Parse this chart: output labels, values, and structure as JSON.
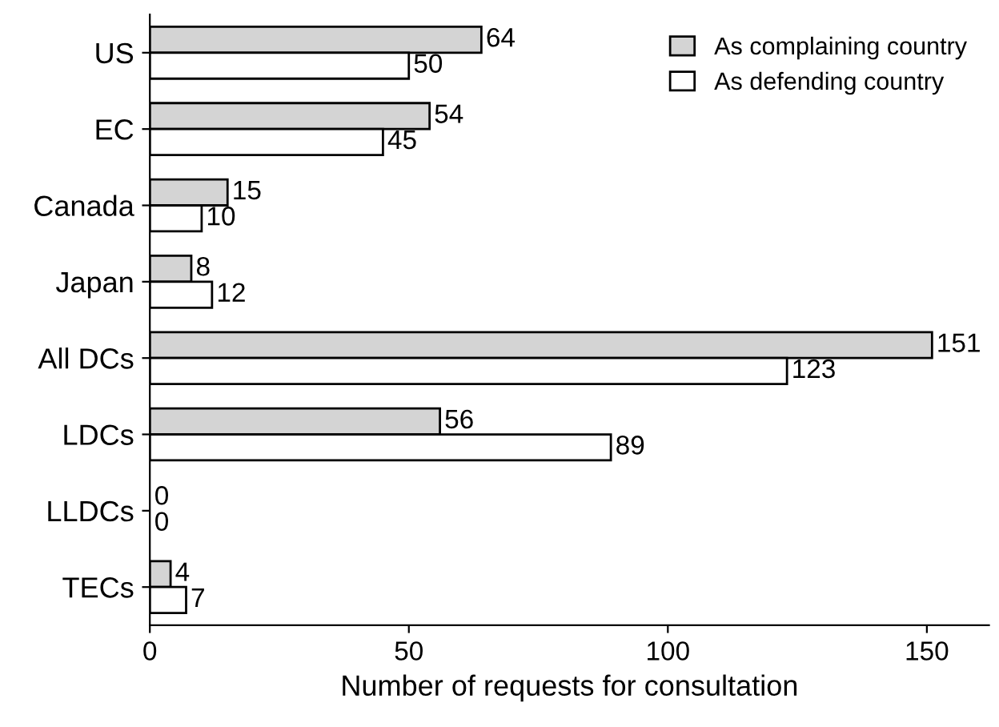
{
  "chart_data": {
    "type": "bar",
    "orientation": "horizontal",
    "xlabel": "Number of requests for consultation",
    "categories": [
      "US",
      "EC",
      "Canada",
      "Japan",
      "All DCs",
      "LDCs",
      "LLDCs",
      "TECs"
    ],
    "series": [
      {
        "name": "As complaining country",
        "color": "#d4d4d4",
        "values": [
          64,
          54,
          15,
          8,
          151,
          56,
          0,
          4
        ]
      },
      {
        "name": "As defending country",
        "color": "#ffffff",
        "values": [
          50,
          45,
          10,
          12,
          123,
          89,
          0,
          7
        ]
      }
    ],
    "xlim": [
      0,
      162
    ],
    "xticks": [
      0,
      50,
      100,
      150
    ],
    "data_labels": true,
    "legend": "top right",
    "grid": false
  }
}
